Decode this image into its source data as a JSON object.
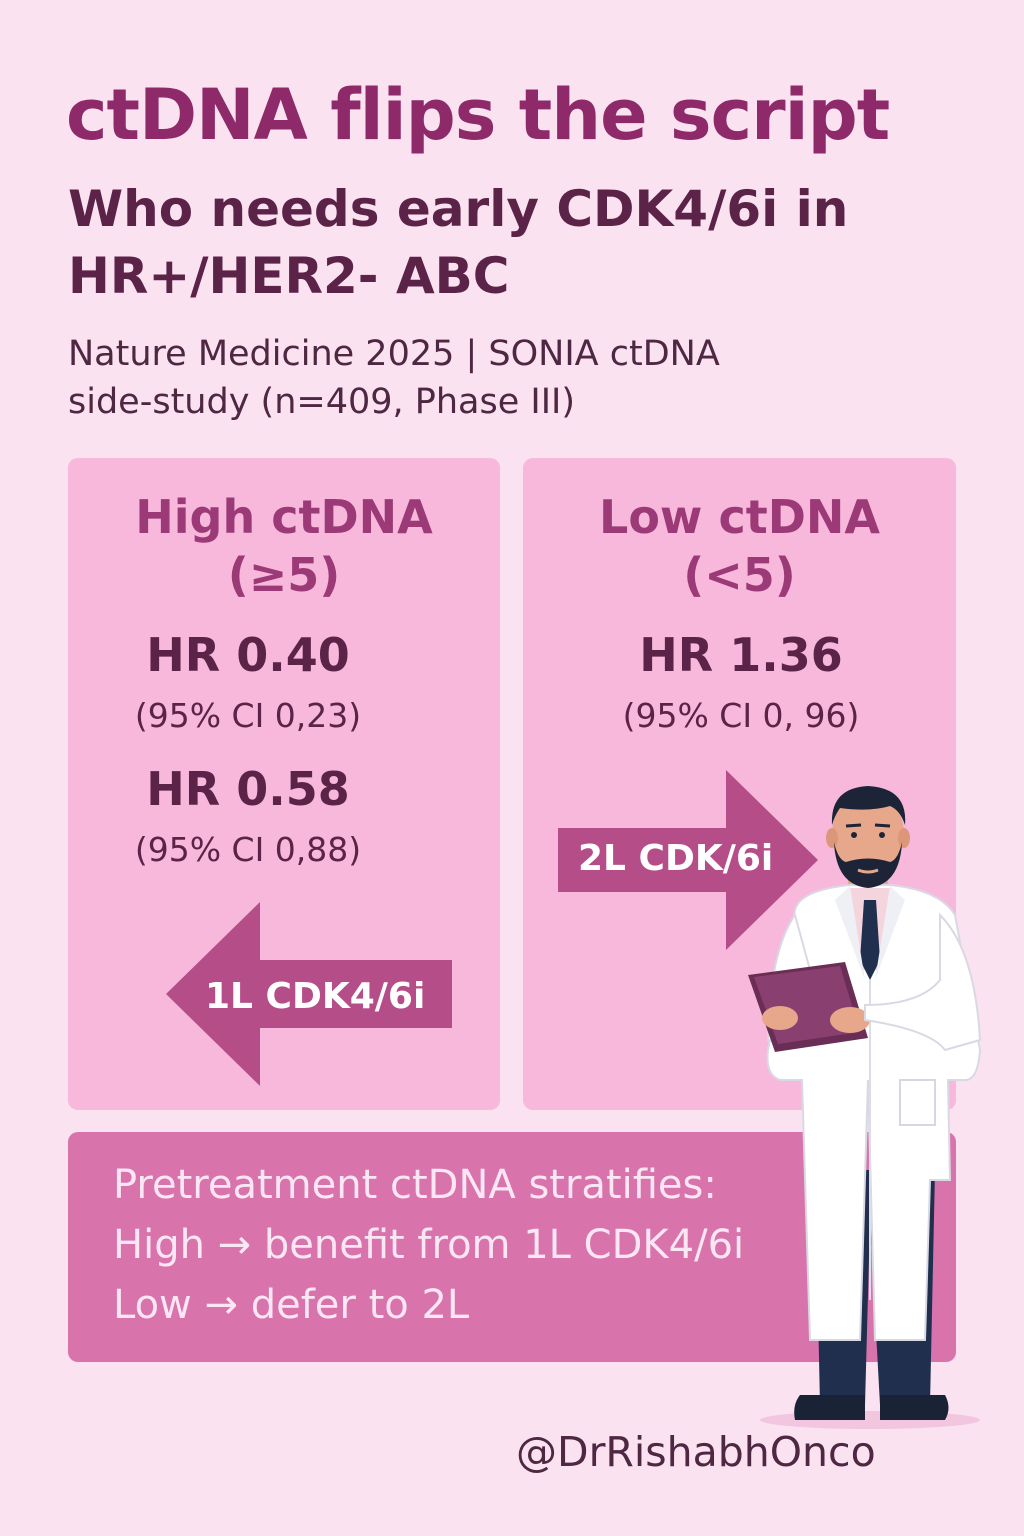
{
  "title": "ctDNA flips the script",
  "subtitle": {
    "line1": "Who needs early CDK4/6i in",
    "line2": "HR+/HER2- ABC"
  },
  "citation": {
    "line1": "Nature Medicine 2025 | SONIA ctDNA",
    "line2": "side-study (n=409, Phase III)"
  },
  "high_panel": {
    "title_line1": "High ctDNA",
    "title_line2": "(≥5)",
    "hr1": "HR 0.40",
    "ci1": "(95% CI 0,23)",
    "hr2": "HR 0.58",
    "ci2": "(95% CI 0,88)",
    "arrow_label": "1L CDK4/6i"
  },
  "low_panel": {
    "title_line1": "Low ctDNA",
    "title_line2": "(<5)",
    "hr1": "HR 1.36",
    "ci1": "(95% CI 0, 96)",
    "arrow_label": "2L CDK/6i"
  },
  "summary": {
    "line1": "Pretreatment ctDNA stratifies:",
    "line2": "High → benefit from 1L CDK4/6i",
    "line3": "Low → defer to 2L"
  },
  "handle": "@DrRishabhOnco",
  "colors": {
    "background": "#fbe2f1",
    "title": "#8e2a6a",
    "panel": "#f7b8dc",
    "arrow": "#b54d88",
    "summary_box": "#d873ac"
  },
  "icons": [
    "doctor-illustration",
    "left-arrow",
    "right-arrow",
    "clipboard-icon"
  ]
}
